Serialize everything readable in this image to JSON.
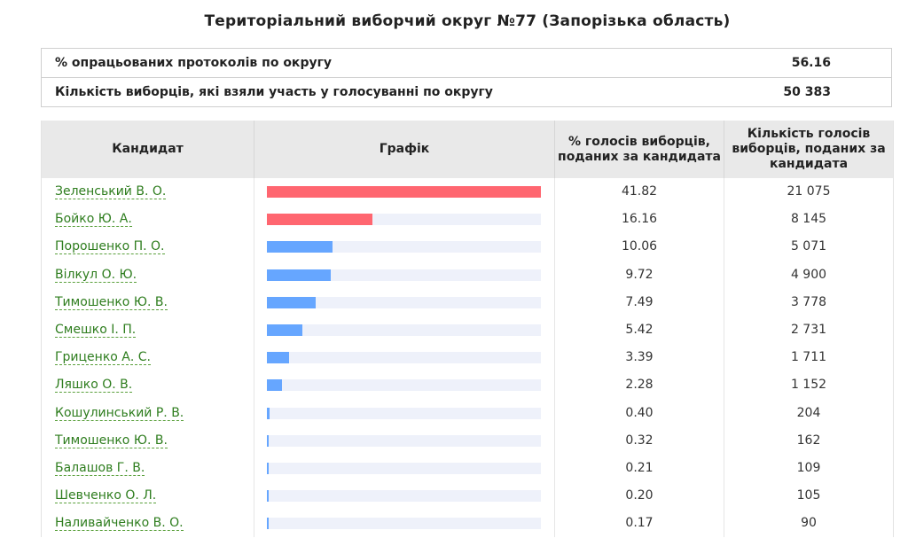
{
  "header": {
    "title": "Територіальний виборчий округ №77 (Запорізька область)"
  },
  "summary": {
    "rows": [
      {
        "label": "% опрацьованих протоколів по округу",
        "value": "56.16"
      },
      {
        "label": "Кількість виборців, які взяли участь у голосуванні по округу",
        "value": "50 383"
      }
    ]
  },
  "table": {
    "columns": {
      "candidate": "Кандидат",
      "chart": "Графік",
      "percent": "% голосів виборців, поданих за кандидата",
      "votes": "Кількість голосів виборців, поданих за кандидата"
    },
    "colors": {
      "leader": "#ff6670",
      "other": "#66a6ff",
      "track": "#eef1fa"
    },
    "rows": [
      {
        "name": "Зеленський В. О.",
        "percent": "41.82",
        "votes": "21 075",
        "share": 41.82,
        "highlight": true
      },
      {
        "name": "Бойко Ю. А.",
        "percent": "16.16",
        "votes": "8 145",
        "share": 16.16,
        "highlight": true
      },
      {
        "name": "Порошенко П. О.",
        "percent": "10.06",
        "votes": "5 071",
        "share": 10.06,
        "highlight": false
      },
      {
        "name": "Вілкул О. Ю.",
        "percent": "9.72",
        "votes": "4 900",
        "share": 9.72,
        "highlight": false
      },
      {
        "name": "Тимошенко Ю. В.",
        "percent": "7.49",
        "votes": "3 778",
        "share": 7.49,
        "highlight": false
      },
      {
        "name": "Смешко І. П.",
        "percent": "5.42",
        "votes": "2 731",
        "share": 5.42,
        "highlight": false
      },
      {
        "name": "Гриценко А. С.",
        "percent": "3.39",
        "votes": "1 711",
        "share": 3.39,
        "highlight": false
      },
      {
        "name": "Ляшко О. В.",
        "percent": "2.28",
        "votes": "1 152",
        "share": 2.28,
        "highlight": false
      },
      {
        "name": "Кошулинський Р. В.",
        "percent": "0.40",
        "votes": "204",
        "share": 0.4,
        "highlight": false
      },
      {
        "name": "Тимошенко Ю. В.",
        "percent": "0.32",
        "votes": "162",
        "share": 0.32,
        "highlight": false
      },
      {
        "name": "Балашов Г. В.",
        "percent": "0.21",
        "votes": "109",
        "share": 0.21,
        "highlight": false
      },
      {
        "name": "Шевченко О. Л.",
        "percent": "0.20",
        "votes": "105",
        "share": 0.2,
        "highlight": false
      },
      {
        "name": "Наливайченко В. О.",
        "percent": "0.17",
        "votes": "90",
        "share": 0.17,
        "highlight": false
      }
    ]
  }
}
